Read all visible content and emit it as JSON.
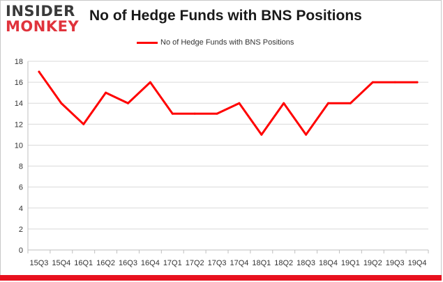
{
  "brand": {
    "logo_line1": "INSIDER",
    "logo_line2": "MONKEY",
    "accent": "#e0333c"
  },
  "chart_data": {
    "type": "line",
    "title": "No of Hedge Funds with BNS Positions",
    "xlabel": "",
    "ylabel": "",
    "categories": [
      "15Q3",
      "15Q4",
      "16Q1",
      "16Q2",
      "16Q3",
      "16Q4",
      "17Q1",
      "17Q2",
      "17Q3",
      "17Q4",
      "18Q1",
      "18Q2",
      "18Q3",
      "18Q4",
      "19Q1",
      "19Q2",
      "19Q3",
      "19Q4"
    ],
    "series": [
      {
        "name": "No of Hedge Funds with BNS Positions",
        "values": [
          17,
          14,
          12,
          15,
          14,
          16,
          13,
          13,
          13,
          14,
          11,
          14,
          11,
          14,
          14,
          16,
          16,
          16
        ],
        "color": "#ff0000"
      }
    ],
    "ylim": [
      0,
      18
    ],
    "yticks": [
      0,
      2,
      4,
      6,
      8,
      10,
      12,
      14,
      16,
      18
    ],
    "grid": true,
    "legend_position": "top-center"
  }
}
